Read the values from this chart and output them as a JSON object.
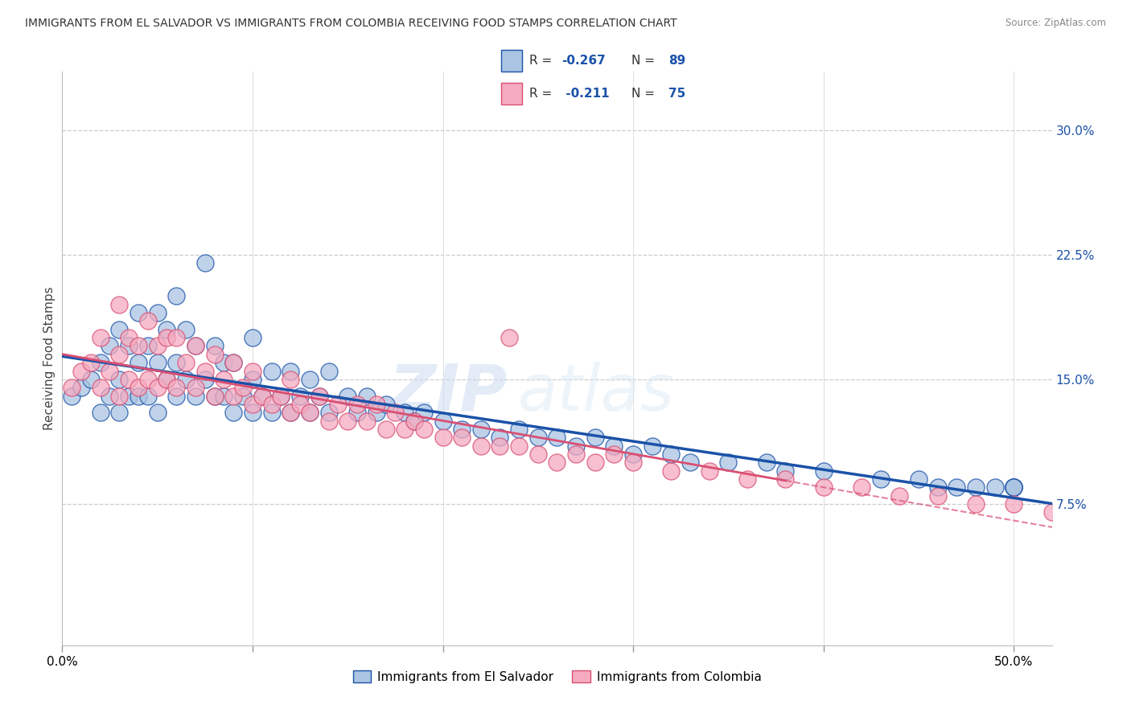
{
  "title": "IMMIGRANTS FROM EL SALVADOR VS IMMIGRANTS FROM COLOMBIA RECEIVING FOOD STAMPS CORRELATION CHART",
  "source": "Source: ZipAtlas.com",
  "ylabel": "Receiving Food Stamps",
  "ytick_labels": [
    "7.5%",
    "15.0%",
    "22.5%",
    "30.0%"
  ],
  "ytick_values": [
    0.075,
    0.15,
    0.225,
    0.3
  ],
  "xlim": [
    0.0,
    0.52
  ],
  "ylim": [
    -0.01,
    0.335
  ],
  "color_blue": "#aac4e2",
  "color_pink": "#f5aabf",
  "line_blue": "#1a52a8",
  "line_pink": "#d94f72",
  "watermark_zip": "ZIP",
  "watermark_atlas": "atlas",
  "salvador_x": [
    0.005,
    0.01,
    0.015,
    0.02,
    0.02,
    0.025,
    0.025,
    0.03,
    0.03,
    0.03,
    0.035,
    0.035,
    0.04,
    0.04,
    0.04,
    0.045,
    0.045,
    0.05,
    0.05,
    0.05,
    0.055,
    0.055,
    0.06,
    0.06,
    0.06,
    0.065,
    0.065,
    0.07,
    0.07,
    0.075,
    0.075,
    0.08,
    0.08,
    0.085,
    0.085,
    0.09,
    0.09,
    0.095,
    0.1,
    0.1,
    0.1,
    0.105,
    0.11,
    0.11,
    0.115,
    0.12,
    0.12,
    0.125,
    0.13,
    0.13,
    0.135,
    0.14,
    0.14,
    0.15,
    0.155,
    0.16,
    0.165,
    0.17,
    0.18,
    0.185,
    0.19,
    0.2,
    0.21,
    0.22,
    0.23,
    0.24,
    0.25,
    0.26,
    0.27,
    0.28,
    0.29,
    0.3,
    0.31,
    0.32,
    0.33,
    0.35,
    0.37,
    0.38,
    0.4,
    0.43,
    0.45,
    0.46,
    0.47,
    0.48,
    0.49,
    0.5,
    0.5,
    0.5,
    0.5
  ],
  "salvador_y": [
    0.14,
    0.145,
    0.15,
    0.13,
    0.16,
    0.14,
    0.17,
    0.13,
    0.15,
    0.18,
    0.14,
    0.17,
    0.14,
    0.16,
    0.19,
    0.14,
    0.17,
    0.13,
    0.16,
    0.19,
    0.15,
    0.18,
    0.14,
    0.16,
    0.2,
    0.15,
    0.18,
    0.14,
    0.17,
    0.15,
    0.22,
    0.14,
    0.17,
    0.14,
    0.16,
    0.13,
    0.16,
    0.14,
    0.13,
    0.15,
    0.175,
    0.14,
    0.13,
    0.155,
    0.14,
    0.13,
    0.155,
    0.14,
    0.13,
    0.15,
    0.14,
    0.13,
    0.155,
    0.14,
    0.13,
    0.14,
    0.13,
    0.135,
    0.13,
    0.125,
    0.13,
    0.125,
    0.12,
    0.12,
    0.115,
    0.12,
    0.115,
    0.115,
    0.11,
    0.115,
    0.11,
    0.105,
    0.11,
    0.105,
    0.1,
    0.1,
    0.1,
    0.095,
    0.095,
    0.09,
    0.09,
    0.085,
    0.085,
    0.085,
    0.085,
    0.085,
    0.085,
    0.085,
    0.085
  ],
  "colombia_x": [
    0.005,
    0.01,
    0.015,
    0.02,
    0.02,
    0.025,
    0.03,
    0.03,
    0.03,
    0.035,
    0.035,
    0.04,
    0.04,
    0.045,
    0.045,
    0.05,
    0.05,
    0.055,
    0.055,
    0.06,
    0.06,
    0.065,
    0.07,
    0.07,
    0.075,
    0.08,
    0.08,
    0.085,
    0.09,
    0.09,
    0.095,
    0.1,
    0.1,
    0.105,
    0.11,
    0.115,
    0.12,
    0.12,
    0.125,
    0.13,
    0.135,
    0.14,
    0.145,
    0.15,
    0.155,
    0.16,
    0.165,
    0.17,
    0.175,
    0.18,
    0.185,
    0.19,
    0.2,
    0.21,
    0.22,
    0.23,
    0.235,
    0.24,
    0.25,
    0.26,
    0.27,
    0.28,
    0.29,
    0.3,
    0.32,
    0.34,
    0.36,
    0.38,
    0.4,
    0.42,
    0.44,
    0.46,
    0.48,
    0.5,
    0.52
  ],
  "colombia_y": [
    0.145,
    0.155,
    0.16,
    0.145,
    0.175,
    0.155,
    0.14,
    0.165,
    0.195,
    0.15,
    0.175,
    0.145,
    0.17,
    0.15,
    0.185,
    0.145,
    0.17,
    0.15,
    0.175,
    0.145,
    0.175,
    0.16,
    0.145,
    0.17,
    0.155,
    0.14,
    0.165,
    0.15,
    0.14,
    0.16,
    0.145,
    0.135,
    0.155,
    0.14,
    0.135,
    0.14,
    0.13,
    0.15,
    0.135,
    0.13,
    0.14,
    0.125,
    0.135,
    0.125,
    0.135,
    0.125,
    0.135,
    0.12,
    0.13,
    0.12,
    0.125,
    0.12,
    0.115,
    0.115,
    0.11,
    0.11,
    0.175,
    0.11,
    0.105,
    0.1,
    0.105,
    0.1,
    0.105,
    0.1,
    0.095,
    0.095,
    0.09,
    0.09,
    0.085,
    0.085,
    0.08,
    0.08,
    0.075,
    0.075,
    0.07
  ]
}
